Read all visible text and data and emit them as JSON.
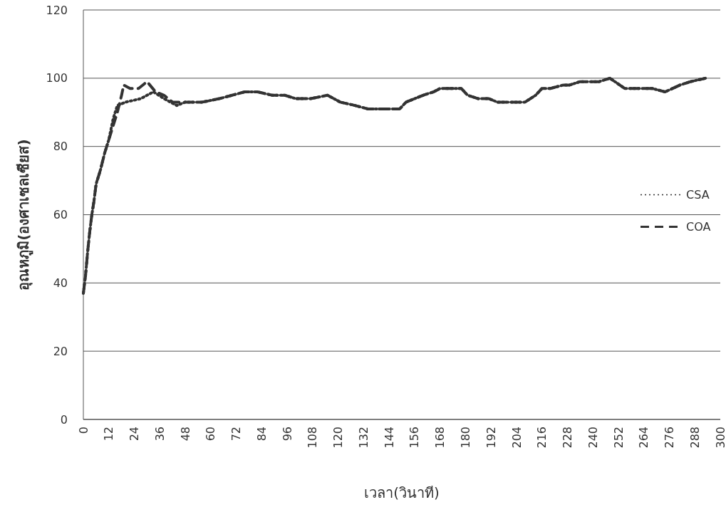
{
  "chart_data": {
    "type": "line",
    "xlabel": "เวลา(วินาที)",
    "ylabel": "อุณหภูมิ(องศาเซลเซียส)",
    "xlim": [
      0,
      300
    ],
    "xticks": [
      0,
      12,
      24,
      36,
      48,
      60,
      72,
      84,
      96,
      108,
      120,
      132,
      144,
      156,
      168,
      180,
      192,
      204,
      216,
      228,
      240,
      252,
      264,
      276,
      288,
      300
    ],
    "ylim": [
      0,
      120
    ],
    "yticks": [
      0,
      20,
      40,
      60,
      80,
      100,
      120
    ],
    "grid": "y",
    "legend": "right",
    "series": [
      {
        "name": "CSA",
        "color": "#333333",
        "line_style": "dotted",
        "x": [
          0,
          1,
          2,
          3,
          4,
          5,
          6,
          8,
          10,
          12,
          14,
          16,
          20,
          27,
          33,
          38,
          44,
          48,
          56,
          64,
          70,
          76,
          82,
          89,
          95,
          100,
          107,
          115,
          121,
          128,
          134,
          140,
          149,
          152,
          160,
          165,
          168,
          174,
          178,
          181,
          186,
          191,
          195,
          200,
          204,
          208,
          213,
          216,
          220,
          226,
          229,
          234,
          243,
          248,
          255,
          260,
          268,
          274,
          281,
          286,
          293
        ],
        "values": [
          37,
          42,
          49,
          55,
          60,
          64,
          69,
          73,
          78,
          82,
          88,
          92,
          93,
          94,
          96,
          94,
          92,
          93,
          93,
          94,
          95,
          96,
          96,
          95,
          95,
          94,
          94,
          95,
          93,
          92,
          91,
          91,
          91,
          93,
          95,
          96,
          97,
          97,
          97,
          95,
          94,
          94,
          93,
          93,
          93,
          93,
          95,
          97,
          97,
          98,
          98,
          99,
          99,
          100,
          97,
          97,
          97,
          96,
          98,
          99,
          100
        ]
      },
      {
        "name": "COA",
        "color": "#333333",
        "line_style": "dashed",
        "x": [
          0,
          1,
          2,
          3,
          4,
          5,
          6,
          8,
          10,
          12,
          14,
          16,
          18,
          19,
          22,
          26,
          30,
          34,
          38,
          42,
          48,
          56,
          64,
          70,
          76,
          82,
          89,
          95,
          100,
          107,
          115,
          121,
          128,
          134,
          140,
          149,
          152,
          160,
          165,
          168,
          174,
          178,
          181,
          186,
          191,
          195,
          200,
          204,
          208,
          213,
          216,
          220,
          226,
          229,
          234,
          243,
          248,
          255,
          260,
          268,
          274,
          281,
          286,
          293
        ],
        "values": [
          37,
          42,
          49,
          55,
          60,
          64,
          69,
          73,
          78,
          82,
          86,
          90,
          95,
          98,
          97,
          97,
          99,
          96,
          95,
          93,
          93,
          93,
          94,
          95,
          96,
          96,
          95,
          95,
          94,
          94,
          95,
          93,
          92,
          91,
          91,
          91,
          93,
          95,
          96,
          97,
          97,
          97,
          95,
          94,
          94,
          93,
          93,
          93,
          93,
          95,
          97,
          97,
          98,
          98,
          99,
          99,
          100,
          97,
          97,
          97,
          96,
          98,
          99,
          100
        ]
      }
    ]
  }
}
